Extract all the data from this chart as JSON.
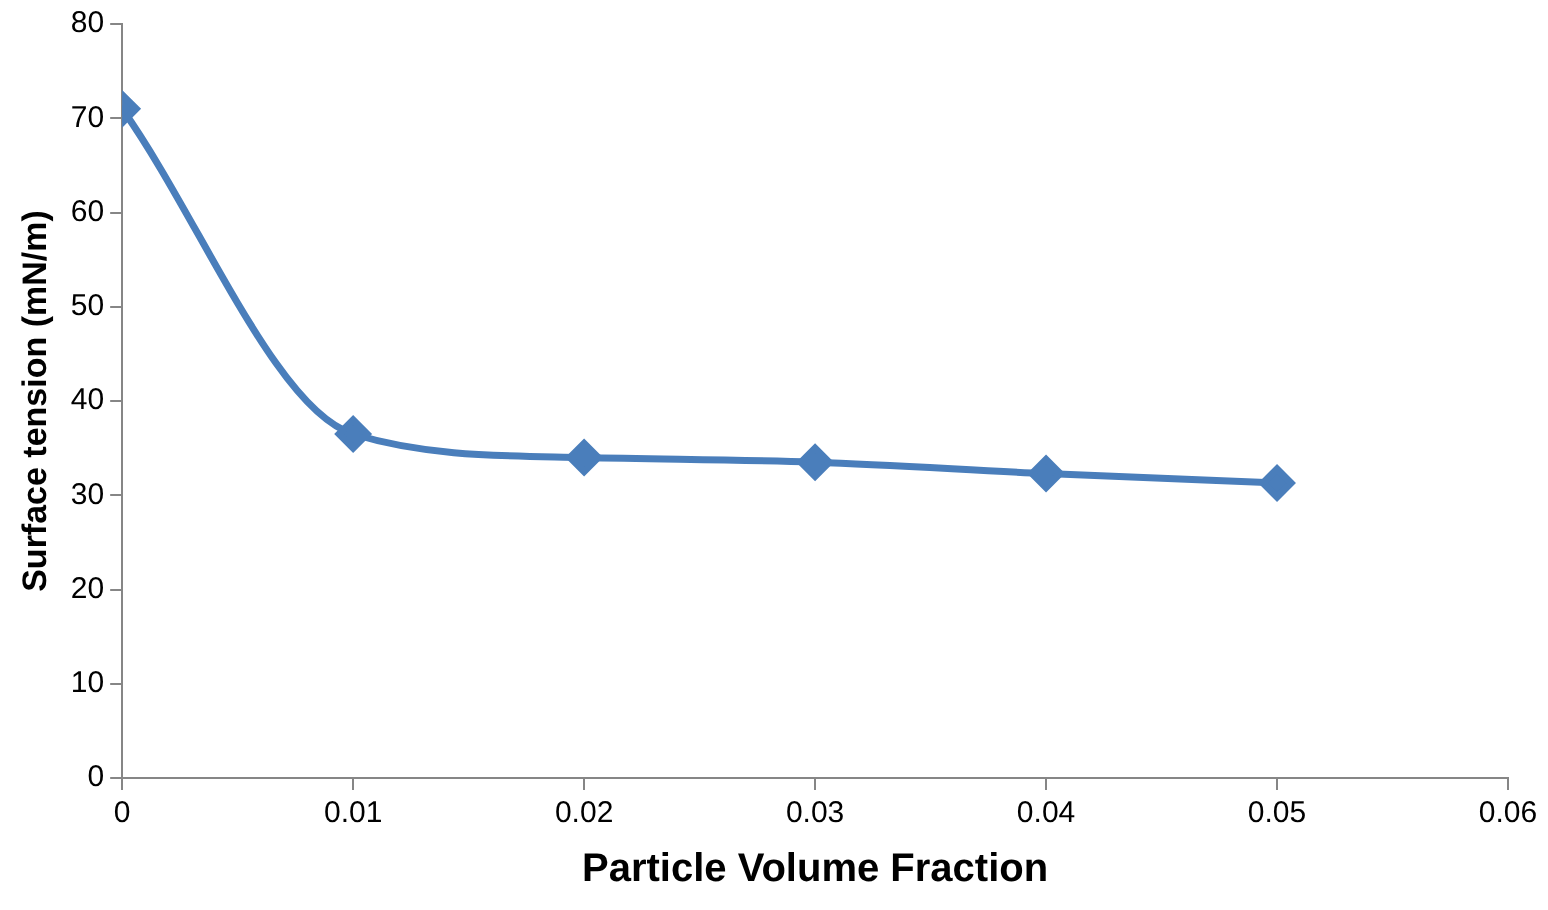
{
  "chart_data": {
    "type": "line",
    "xlabel": "Particle Volume Fraction",
    "ylabel": "Surface tension (mN/m)",
    "x": [
      0,
      0.01,
      0.02,
      0.03,
      0.04,
      0.05
    ],
    "series": [
      {
        "color": "#4a7ebb",
        "values": [
          71,
          36.5,
          34,
          33.5,
          32.3,
          31.3
        ]
      }
    ],
    "xlim": [
      0,
      0.06
    ],
    "xticks": [
      0,
      0.01,
      0.02,
      0.03,
      0.04,
      0.05,
      0.06
    ],
    "ylim": [
      0,
      80
    ],
    "yticks": [
      0,
      10,
      20,
      30,
      40,
      50,
      60,
      70,
      80
    ],
    "grid": false,
    "legend": false,
    "marker": "diamond",
    "line_style": "solid"
  }
}
